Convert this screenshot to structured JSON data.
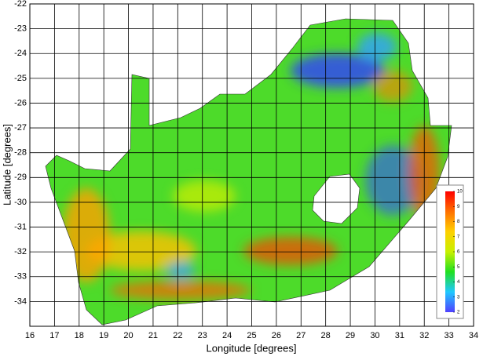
{
  "chart_data": {
    "type": "map",
    "x_label": "Longitude [degrees]",
    "y_label": "Latitude [degrees]",
    "xlim": [
      16,
      34
    ],
    "ylim": [
      -35,
      -22
    ],
    "xticks": [
      16,
      17,
      18,
      19,
      20,
      21,
      22,
      23,
      24,
      25,
      26,
      27,
      28,
      29,
      30,
      31,
      32,
      33,
      34
    ],
    "yticks": [
      -22,
      -23,
      -24,
      -25,
      -26,
      -27,
      -28,
      -29,
      -30,
      -31,
      -32,
      -33,
      -34
    ],
    "grid": true,
    "colorbar": {
      "lim": [
        2,
        10
      ],
      "ticks": [
        10,
        9,
        8,
        7,
        6,
        5,
        4,
        3,
        2
      ],
      "colors": [
        "#5040ff",
        "#20c8ff",
        "#20e020",
        "#c8f000",
        "#ffd000",
        "#ff7000",
        "#ff0000"
      ]
    }
  }
}
